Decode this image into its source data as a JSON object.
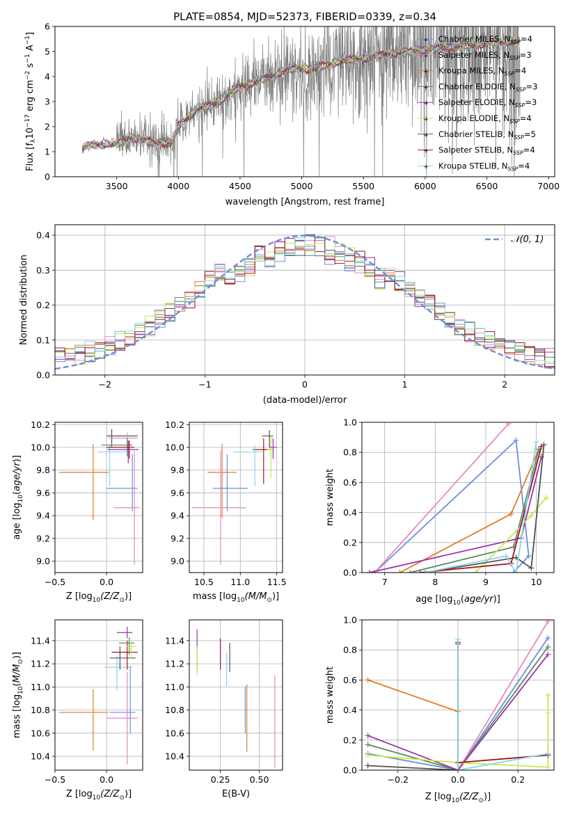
{
  "title": "PLATE=0854, MJD=52373, FIBERID=0339, z=0.34",
  "colors": [
    "#6b8fd8",
    "#e887c3",
    "#e07b27",
    "#5c8a5c",
    "#9932aa",
    "#c7e94a",
    "#505050",
    "#a0141e",
    "#86d6e6"
  ],
  "chart_data": [
    {
      "id": "spectrum",
      "type": "line",
      "xlabel": "wavelength [Angstrom, rest frame]",
      "ylabel": "Flux [f$_\\lambda$10$^{-17}$ erg cm$^{-2}$ s$^{-1}$ A$^{-1}$]",
      "ylabel_parts": [
        "Flux [f",
        "λ",
        "10",
        "−17",
        " erg cm",
        "−2",
        " s",
        "−1",
        " A",
        "−1",
        "]"
      ],
      "xlim": [
        3000,
        7050
      ],
      "ylim": [
        0,
        6
      ],
      "xticks": [
        "3500",
        "4000",
        "4500",
        "5000",
        "5500",
        "6000",
        "6500",
        "7000"
      ],
      "yticks": [
        "0",
        "1",
        "2",
        "3",
        "4",
        "5",
        "6"
      ],
      "continuum_x": [
        3220,
        3260,
        3400,
        3500,
        3600,
        3700,
        3800,
        3950,
        4000,
        4150,
        4300,
        4500,
        4700,
        4900,
        5100,
        5300,
        5500,
        5700,
        5900,
        6100,
        6300,
        6500,
        6700
      ],
      "continuum_y": [
        1.1,
        1.25,
        1.3,
        1.3,
        1.55,
        1.5,
        1.35,
        1.35,
        2.0,
        2.7,
        2.9,
        3.6,
        3.9,
        4.3,
        4.3,
        4.6,
        4.7,
        4.9,
        5.0,
        5.1,
        5.2,
        5.3,
        5.4
      ],
      "data_color": "#808080",
      "legend": [
        {
          "label": "Chabrier MILES, N",
          "sub": "SSP",
          "eq": "=4"
        },
        {
          "label": "Salpeter MILES, N",
          "sub": "SSP",
          "eq": "=3"
        },
        {
          "label": "Kroupa MILES, N",
          "sub": "SSP",
          "eq": "=4"
        },
        {
          "label": "Chabrier ELODIE, N",
          "sub": "SSP",
          "eq": "=3"
        },
        {
          "label": "Salpeter ELODIE, N",
          "sub": "SSP",
          "eq": "=3"
        },
        {
          "label": "Kroupa ELODIE, N",
          "sub": "SSP",
          "eq": "=4"
        },
        {
          "label": "Chabrier STELIB, N",
          "sub": "SSP",
          "eq": "=5"
        },
        {
          "label": "Salpeter STELIB, N",
          "sub": "SSP",
          "eq": "=4"
        },
        {
          "label": "Kroupa STELIB, N",
          "sub": "SSP",
          "eq": "=4"
        }
      ]
    },
    {
      "id": "residuals",
      "type": "histogram",
      "xlabel": "(data-model)/error",
      "ylabel": "Normed distribution",
      "xlim": [
        -2.5,
        2.5
      ],
      "ylim": [
        0,
        0.43
      ],
      "xticks": [
        "−2",
        "−1",
        "0",
        "1",
        "2"
      ],
      "xtick_values": [
        -2,
        -1,
        0,
        1,
        2
      ],
      "yticks": [
        "0.0",
        "0.1",
        "0.2",
        "0.3",
        "0.4"
      ],
      "ytick_values": [
        0,
        0.1,
        0.2,
        0.3,
        0.4
      ],
      "bin_width": 0.1,
      "legend": "𝒩(0, 1)",
      "gaussian": {
        "mean": 0,
        "sigma": 1,
        "style": "dashed",
        "color": "#6b8fd8"
      }
    },
    {
      "id": "age-vs-Z",
      "type": "errorbar",
      "xlabel": "Z [log",
      "xlabel_sub": "10",
      "xlabel_tail": "(Z/Z",
      "xlabel_end": ")]",
      "ylabel": "age  [log10(age/yr)]",
      "xlim": [
        -0.5,
        0.35
      ],
      "ylim": [
        8.9,
        10.22
      ],
      "xticks": [
        "−0.5",
        "0.0"
      ],
      "xtick_values": [
        -0.5,
        0
      ],
      "yticks": [
        "9.0",
        "9.2",
        "9.4",
        "9.6",
        "9.8",
        "10.0",
        "10.2"
      ],
      "ytick_values": [
        9.0,
        9.2,
        9.4,
        9.6,
        9.8,
        10.0,
        10.2
      ],
      "points": [
        {
          "x": 0.05,
          "y": 10.1,
          "xerr": [
            0.05,
            0.25
          ],
          "yerr": [
            0.1,
            0.06
          ],
          "c": 6
        },
        {
          "x": 0.2,
          "y": 10.08,
          "xerr": [
            0.18,
            0.1
          ],
          "yerr": [
            0.08,
            0.05
          ],
          "c": 1
        },
        {
          "x": -0.13,
          "y": 9.78,
          "xerr": [
            0.33,
            0.15
          ],
          "yerr": [
            0.42,
            0.25
          ],
          "c": 2
        },
        {
          "x": 0.25,
          "y": 9.64,
          "xerr": [
            0.25,
            0.05
          ],
          "yerr": [
            0.2,
            0.3
          ],
          "c": 0
        },
        {
          "x": 0.27,
          "y": 9.47,
          "xerr": [
            0.2,
            0.05
          ],
          "yerr": [
            0.5,
            0.5
          ],
          "c": 1
        },
        {
          "x": 0.03,
          "y": 9.96,
          "xerr": [
            0.12,
            0.2
          ],
          "yerr": [
            0.3,
            0.06
          ],
          "c": 8
        },
        {
          "x": 0.2,
          "y": 10.02,
          "xerr": [
            0.25,
            0.05
          ],
          "yerr": [
            0.1,
            0.06
          ],
          "c": 3
        },
        {
          "x": 0.21,
          "y": 9.98,
          "xerr": [
            0.2,
            0.1
          ],
          "yerr": [
            0.12,
            0.08
          ],
          "c": 4
        },
        {
          "x": 0.22,
          "y": 10.0,
          "xerr": [
            0.22,
            0.05
          ],
          "yerr": [
            0.1,
            0.06
          ],
          "c": 7
        }
      ]
    },
    {
      "id": "age-vs-mass",
      "type": "errorbar",
      "xlabel": "mass [log",
      "xlabel_sub": "10",
      "xlabel_tail": "(M/M",
      "xlabel_end": ")]",
      "xlim": [
        10.3,
        11.58
      ],
      "ylim": [
        8.9,
        10.22
      ],
      "xticks": [
        "10.5",
        "11.0",
        "11.5"
      ],
      "xtick_values": [
        10.5,
        11.0,
        11.5
      ],
      "yticks": [
        "9.0",
        "9.2",
        "9.4",
        "9.6",
        "9.8",
        "10.0",
        "10.2"
      ],
      "ytick_values": [
        9.0,
        9.2,
        9.4,
        9.6,
        9.8,
        10.0,
        10.2
      ],
      "points": [
        {
          "x": 11.4,
          "y": 10.1,
          "xerr": [
            0.1,
            0.05
          ],
          "yerr": [
            0.1,
            0.05
          ],
          "c": 6
        },
        {
          "x": 10.75,
          "y": 9.78,
          "xerr": [
            0.2,
            0.2
          ],
          "yerr": [
            0.4,
            0.25
          ],
          "c": 2
        },
        {
          "x": 10.73,
          "y": 9.47,
          "xerr": [
            0.4,
            0.35
          ],
          "yerr": [
            0.5,
            0.5
          ],
          "c": 1
        },
        {
          "x": 10.82,
          "y": 9.64,
          "xerr": [
            0.2,
            0.28
          ],
          "yerr": [
            0.2,
            0.3
          ],
          "c": 0
        },
        {
          "x": 11.32,
          "y": 9.98,
          "xerr": [
            0.15,
            0.1
          ],
          "yerr": [
            0.3,
            0.1
          ],
          "c": 7
        },
        {
          "x": 11.2,
          "y": 9.96,
          "xerr": [
            0.3,
            0.1
          ],
          "yerr": [
            0.3,
            0.06
          ],
          "c": 8
        },
        {
          "x": 11.42,
          "y": 9.98,
          "xerr": [
            0.05,
            0.05
          ],
          "yerr": [
            0.25,
            0.12
          ],
          "c": 5
        },
        {
          "x": 11.45,
          "y": 10.0,
          "xerr": [
            0.05,
            0.05
          ],
          "yerr": [
            0.1,
            0.08
          ],
          "c": 4
        }
      ]
    },
    {
      "id": "mass-weight-vs-age",
      "type": "line",
      "xlabel": "age  [log",
      "xlabel_sub": "10",
      "xlabel_tail": "(age/yr)]",
      "ylabel": "mass weight",
      "xlim": [
        6.55,
        10.35
      ],
      "ylim": [
        0,
        1
      ],
      "xticks": [
        "7",
        "8",
        "9",
        "10"
      ],
      "xtick_values": [
        7,
        8,
        9,
        10
      ],
      "yticks": [
        "0.0",
        "0.2",
        "0.4",
        "0.6",
        "0.8",
        "1.0"
      ],
      "ytick_values": [
        0,
        0.2,
        0.4,
        0.6,
        0.8,
        1.0
      ],
      "series": [
        {
          "c": 0,
          "x": [
            6.8,
            9.6,
            9.85,
            9.55
          ],
          "y": [
            0.0,
            0.88,
            0.11,
            0.0
          ]
        },
        {
          "c": 1,
          "x": [
            6.8,
            9.45
          ],
          "y": [
            0.0,
            0.99
          ]
        },
        {
          "c": 2,
          "x": [
            7.3,
            9.5,
            10.05
          ],
          "y": [
            0.0,
            0.39,
            0.82
          ]
        },
        {
          "c": 3,
          "x": [
            7.5,
            9.55,
            10.05
          ],
          "y": [
            0.0,
            0.17,
            0.82
          ]
        },
        {
          "c": 4,
          "x": [
            6.7,
            9.7,
            10.1
          ],
          "y": [
            0.0,
            0.23,
            0.77
          ]
        },
        {
          "c": 5,
          "x": [
            8.8,
            9.9,
            10.2
          ],
          "y": [
            0.0,
            0.38,
            0.5
          ]
        },
        {
          "c": 6,
          "x": [
            7.8,
            9.6,
            9.9,
            10.15
          ],
          "y": [
            0.0,
            0.1,
            0.03,
            0.85
          ]
        },
        {
          "c": 7,
          "x": [
            7.7,
            9.5,
            10.1
          ],
          "y": [
            0.0,
            0.06,
            0.84
          ]
        },
        {
          "c": 8,
          "x": [
            7.8,
            9.4,
            9.6,
            10.0
          ],
          "y": [
            0.0,
            0.11,
            0.0,
            0.87
          ]
        }
      ]
    },
    {
      "id": "mass-vs-Z",
      "type": "errorbar",
      "xlabel": "Z [log",
      "xlabel_sub": "10",
      "xlabel_tail": "(Z/Z",
      "xlabel_end": ")]",
      "ylabel": "mass [log10(M/M☉)]",
      "xlim": [
        -0.5,
        0.35
      ],
      "ylim": [
        10.28,
        11.58
      ],
      "xticks": [
        "−0.5",
        "0.0"
      ],
      "xtick_values": [
        -0.5,
        0
      ],
      "yticks": [
        "10.4",
        "10.6",
        "10.8",
        "11.0",
        "11.2",
        "11.4"
      ],
      "ytick_values": [
        10.4,
        10.6,
        10.8,
        11.0,
        11.2,
        11.4
      ],
      "points": [
        {
          "x": -0.13,
          "y": 10.78,
          "xerr": [
            0.33,
            0.15
          ],
          "yerr": [
            0.33,
            0.2
          ],
          "c": 2
        },
        {
          "x": 0.2,
          "y": 10.73,
          "xerr": [
            0.2,
            0.1
          ],
          "yerr": [
            0.4,
            0.4
          ],
          "c": 1
        },
        {
          "x": 0.23,
          "y": 10.78,
          "xerr": [
            0.2,
            0.05
          ],
          "yerr": [
            0.18,
            0.4
          ],
          "c": 0
        },
        {
          "x": 0.1,
          "y": 11.17,
          "xerr": [
            0.12,
            0.15
          ],
          "yerr": [
            0.2,
            0.1
          ],
          "c": 8
        },
        {
          "x": 0.13,
          "y": 11.25,
          "xerr": [
            0.1,
            0.15
          ],
          "yerr": [
            0.1,
            0.1
          ],
          "c": 6
        },
        {
          "x": 0.2,
          "y": 11.3,
          "xerr": [
            0.15,
            0.1
          ],
          "yerr": [
            0.15,
            0.1
          ],
          "c": 7
        },
        {
          "x": 0.22,
          "y": 11.38,
          "xerr": [
            0.1,
            0.05
          ],
          "yerr": [
            0.1,
            0.05
          ],
          "c": 3
        },
        {
          "x": 0.2,
          "y": 11.47,
          "xerr": [
            0.1,
            0.05
          ],
          "yerr": [
            0.05,
            0.05
          ],
          "c": 4
        },
        {
          "x": 0.24,
          "y": 11.35,
          "xerr": [
            0.05,
            0.05
          ],
          "yerr": [
            0.1,
            0.05
          ],
          "c": 5
        }
      ]
    },
    {
      "id": "mass-vs-EBV",
      "type": "errorbar",
      "xlabel": "E(B-V)",
      "xlim": [
        0.05,
        0.65
      ],
      "ylim": [
        10.28,
        11.58
      ],
      "xticks": [
        "0.25",
        "0.50"
      ],
      "xtick_values": [
        0.25,
        0.5
      ],
      "yticks": [
        "10.4",
        "10.6",
        "10.8",
        "11.0",
        "11.2",
        "11.4"
      ],
      "ytick_values": [
        10.4,
        10.6,
        10.8,
        11.0,
        11.2,
        11.4
      ],
      "points": [
        {
          "x": 0.1,
          "y": 11.3,
          "xerr": [
            0,
            0
          ],
          "yerr": [
            0.15,
            0.2
          ],
          "c": 4
        },
        {
          "x": 0.1,
          "y": 11.25,
          "xerr": [
            0,
            0
          ],
          "yerr": [
            0.15,
            0.1
          ],
          "c": 5
        },
        {
          "x": 0.25,
          "y": 11.3,
          "xerr": [
            0,
            0
          ],
          "yerr": [
            0.15,
            0.12
          ],
          "c": 7
        },
        {
          "x": 0.29,
          "y": 11.2,
          "xerr": [
            0,
            0
          ],
          "yerr": [
            0.2,
            0.1
          ],
          "c": 8
        },
        {
          "x": 0.31,
          "y": 11.25,
          "xerr": [
            0,
            0
          ],
          "yerr": [
            0.12,
            0.13
          ],
          "c": 6
        },
        {
          "x": 0.41,
          "y": 10.8,
          "xerr": [
            0,
            0
          ],
          "yerr": [
            0.2,
            0.2
          ],
          "c": 0
        },
        {
          "x": 0.42,
          "y": 10.72,
          "xerr": [
            0,
            0
          ],
          "yerr": [
            0.28,
            0.3
          ],
          "c": 2
        },
        {
          "x": 0.6,
          "y": 10.7,
          "xerr": [
            0,
            0
          ],
          "yerr": [
            0.4,
            0.4
          ],
          "c": 1
        }
      ]
    },
    {
      "id": "mass-weight-vs-Z",
      "type": "line",
      "xlabel": "Z [log",
      "xlabel_sub": "10",
      "xlabel_tail": "(Z/Z",
      "xlabel_end": ")]",
      "ylabel": "mass weight",
      "xlim": [
        -0.32,
        0.32
      ],
      "ylim": [
        0,
        1
      ],
      "xticks": [
        "−0.2",
        "0.0",
        "0.2"
      ],
      "xtick_values": [
        -0.2,
        0,
        0.2
      ],
      "yticks": [
        "0.0",
        "0.2",
        "0.4",
        "0.6",
        "0.8",
        "1.0"
      ],
      "ytick_values": [
        0,
        0.2,
        0.4,
        0.6,
        0.8,
        1.0
      ],
      "series": [
        {
          "c": 0,
          "x": [
            -0.3,
            0.0,
            0.3
          ],
          "y": [
            0.11,
            0.0,
            0.88
          ]
        },
        {
          "c": 1,
          "x": [
            0.0,
            0.3
          ],
          "y": [
            0.0,
            0.99
          ]
        },
        {
          "c": 2,
          "x": [
            -0.3,
            0.0
          ],
          "y": [
            0.6,
            0.39
          ]
        },
        {
          "c": 3,
          "x": [
            -0.3,
            0.0,
            0.3
          ],
          "y": [
            0.17,
            0.0,
            0.82
          ]
        },
        {
          "c": 4,
          "x": [
            -0.3,
            0.0,
            0.3
          ],
          "y": [
            0.23,
            0.0,
            0.77
          ]
        },
        {
          "c": 5,
          "x": [
            -0.3,
            0.0,
            0.3,
            0.3,
            0.3
          ],
          "y": [
            0.1,
            0.05,
            0.02,
            0.38,
            0.5
          ]
        },
        {
          "c": 6,
          "x": [
            -0.3,
            0.0,
            0.0
          ],
          "y": [
            0.03,
            0.0,
            0.85
          ]
        },
        {
          "c": 7,
          "x": [
            0.0,
            0.0,
            0.3
          ],
          "y": [
            0.84,
            0.05,
            0.1
          ]
        },
        {
          "c": 8,
          "x": [
            0.0,
            0.0,
            0.3
          ],
          "y": [
            0.87,
            0.0,
            0.11
          ]
        }
      ]
    }
  ]
}
